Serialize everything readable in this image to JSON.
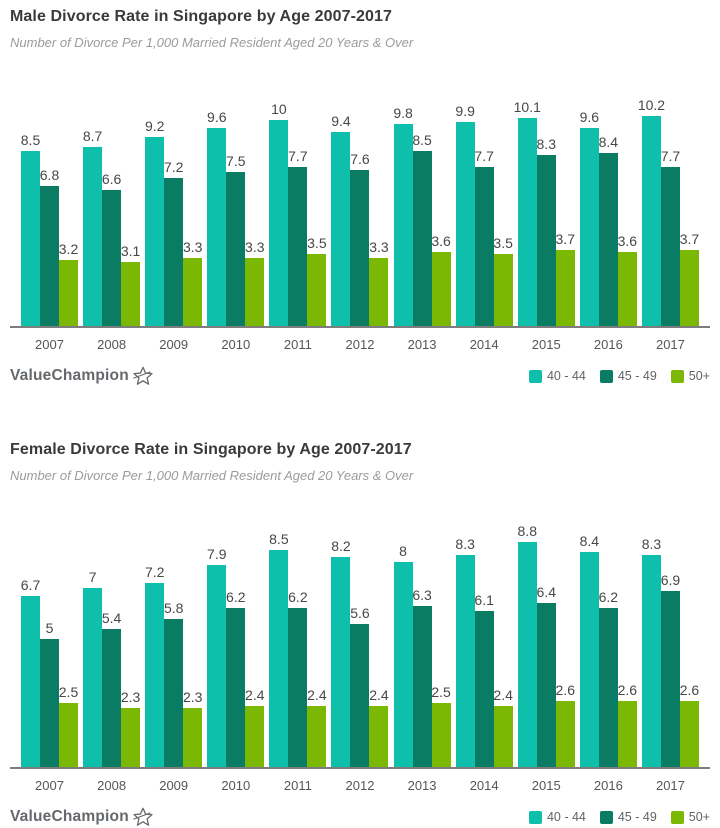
{
  "brand": {
    "name": "ValueChampion"
  },
  "chart_data": [
    {
      "type": "bar",
      "title": "Male Divorce Rate in Singapore by Age 2007-2017",
      "subtitle": "Number of Divorce Per 1,000 Married Resident Aged 20 Years & Over",
      "categories": [
        "2007",
        "2008",
        "2009",
        "2010",
        "2011",
        "2012",
        "2013",
        "2014",
        "2015",
        "2016",
        "2017"
      ],
      "series": [
        {
          "name": "40 - 44",
          "color": "#0ec0ab",
          "values": [
            8.5,
            8.7,
            9.2,
            9.6,
            10,
            9.4,
            9.8,
            9.9,
            10.1,
            9.6,
            10.2
          ]
        },
        {
          "name": "45 - 49",
          "color": "#0a7c64",
          "values": [
            6.8,
            6.6,
            7.2,
            7.5,
            7.7,
            7.6,
            8.5,
            7.7,
            8.3,
            8.4,
            7.7
          ]
        },
        {
          "name": "50+",
          "color": "#7bb804",
          "values": [
            3.2,
            3.1,
            3.3,
            3.3,
            3.5,
            3.3,
            3.6,
            3.5,
            3.7,
            3.6,
            3.7
          ]
        }
      ],
      "ylim": [
        0,
        10.2
      ],
      "grid": false,
      "value_labels": true,
      "legend_position": "bottom-right"
    },
    {
      "type": "bar",
      "title": "Female Divorce Rate in Singapore by Age 2007-2017",
      "subtitle": "Number of Divorce Per 1,000 Married Resident Aged 20 Years & Over",
      "categories": [
        "2007",
        "2008",
        "2009",
        "2010",
        "2011",
        "2012",
        "2013",
        "2014",
        "2015",
        "2016",
        "2017"
      ],
      "series": [
        {
          "name": "40 - 44",
          "color": "#0ec0ab",
          "values": [
            6.7,
            7,
            7.2,
            7.9,
            8.5,
            8.2,
            8,
            8.3,
            8.8,
            8.4,
            8.3
          ]
        },
        {
          "name": "45 - 49",
          "color": "#0a7c64",
          "values": [
            5,
            5.4,
            5.8,
            6.2,
            6.2,
            5.6,
            6.3,
            6.1,
            6.4,
            6.2,
            6.9
          ]
        },
        {
          "name": "50+",
          "color": "#7bb804",
          "values": [
            2.5,
            2.3,
            2.3,
            2.4,
            2.4,
            2.4,
            2.5,
            2.4,
            2.6,
            2.6,
            2.6
          ]
        }
      ],
      "ylim": [
        0,
        8.8
      ],
      "grid": false,
      "value_labels": true,
      "legend_position": "bottom-right"
    }
  ]
}
